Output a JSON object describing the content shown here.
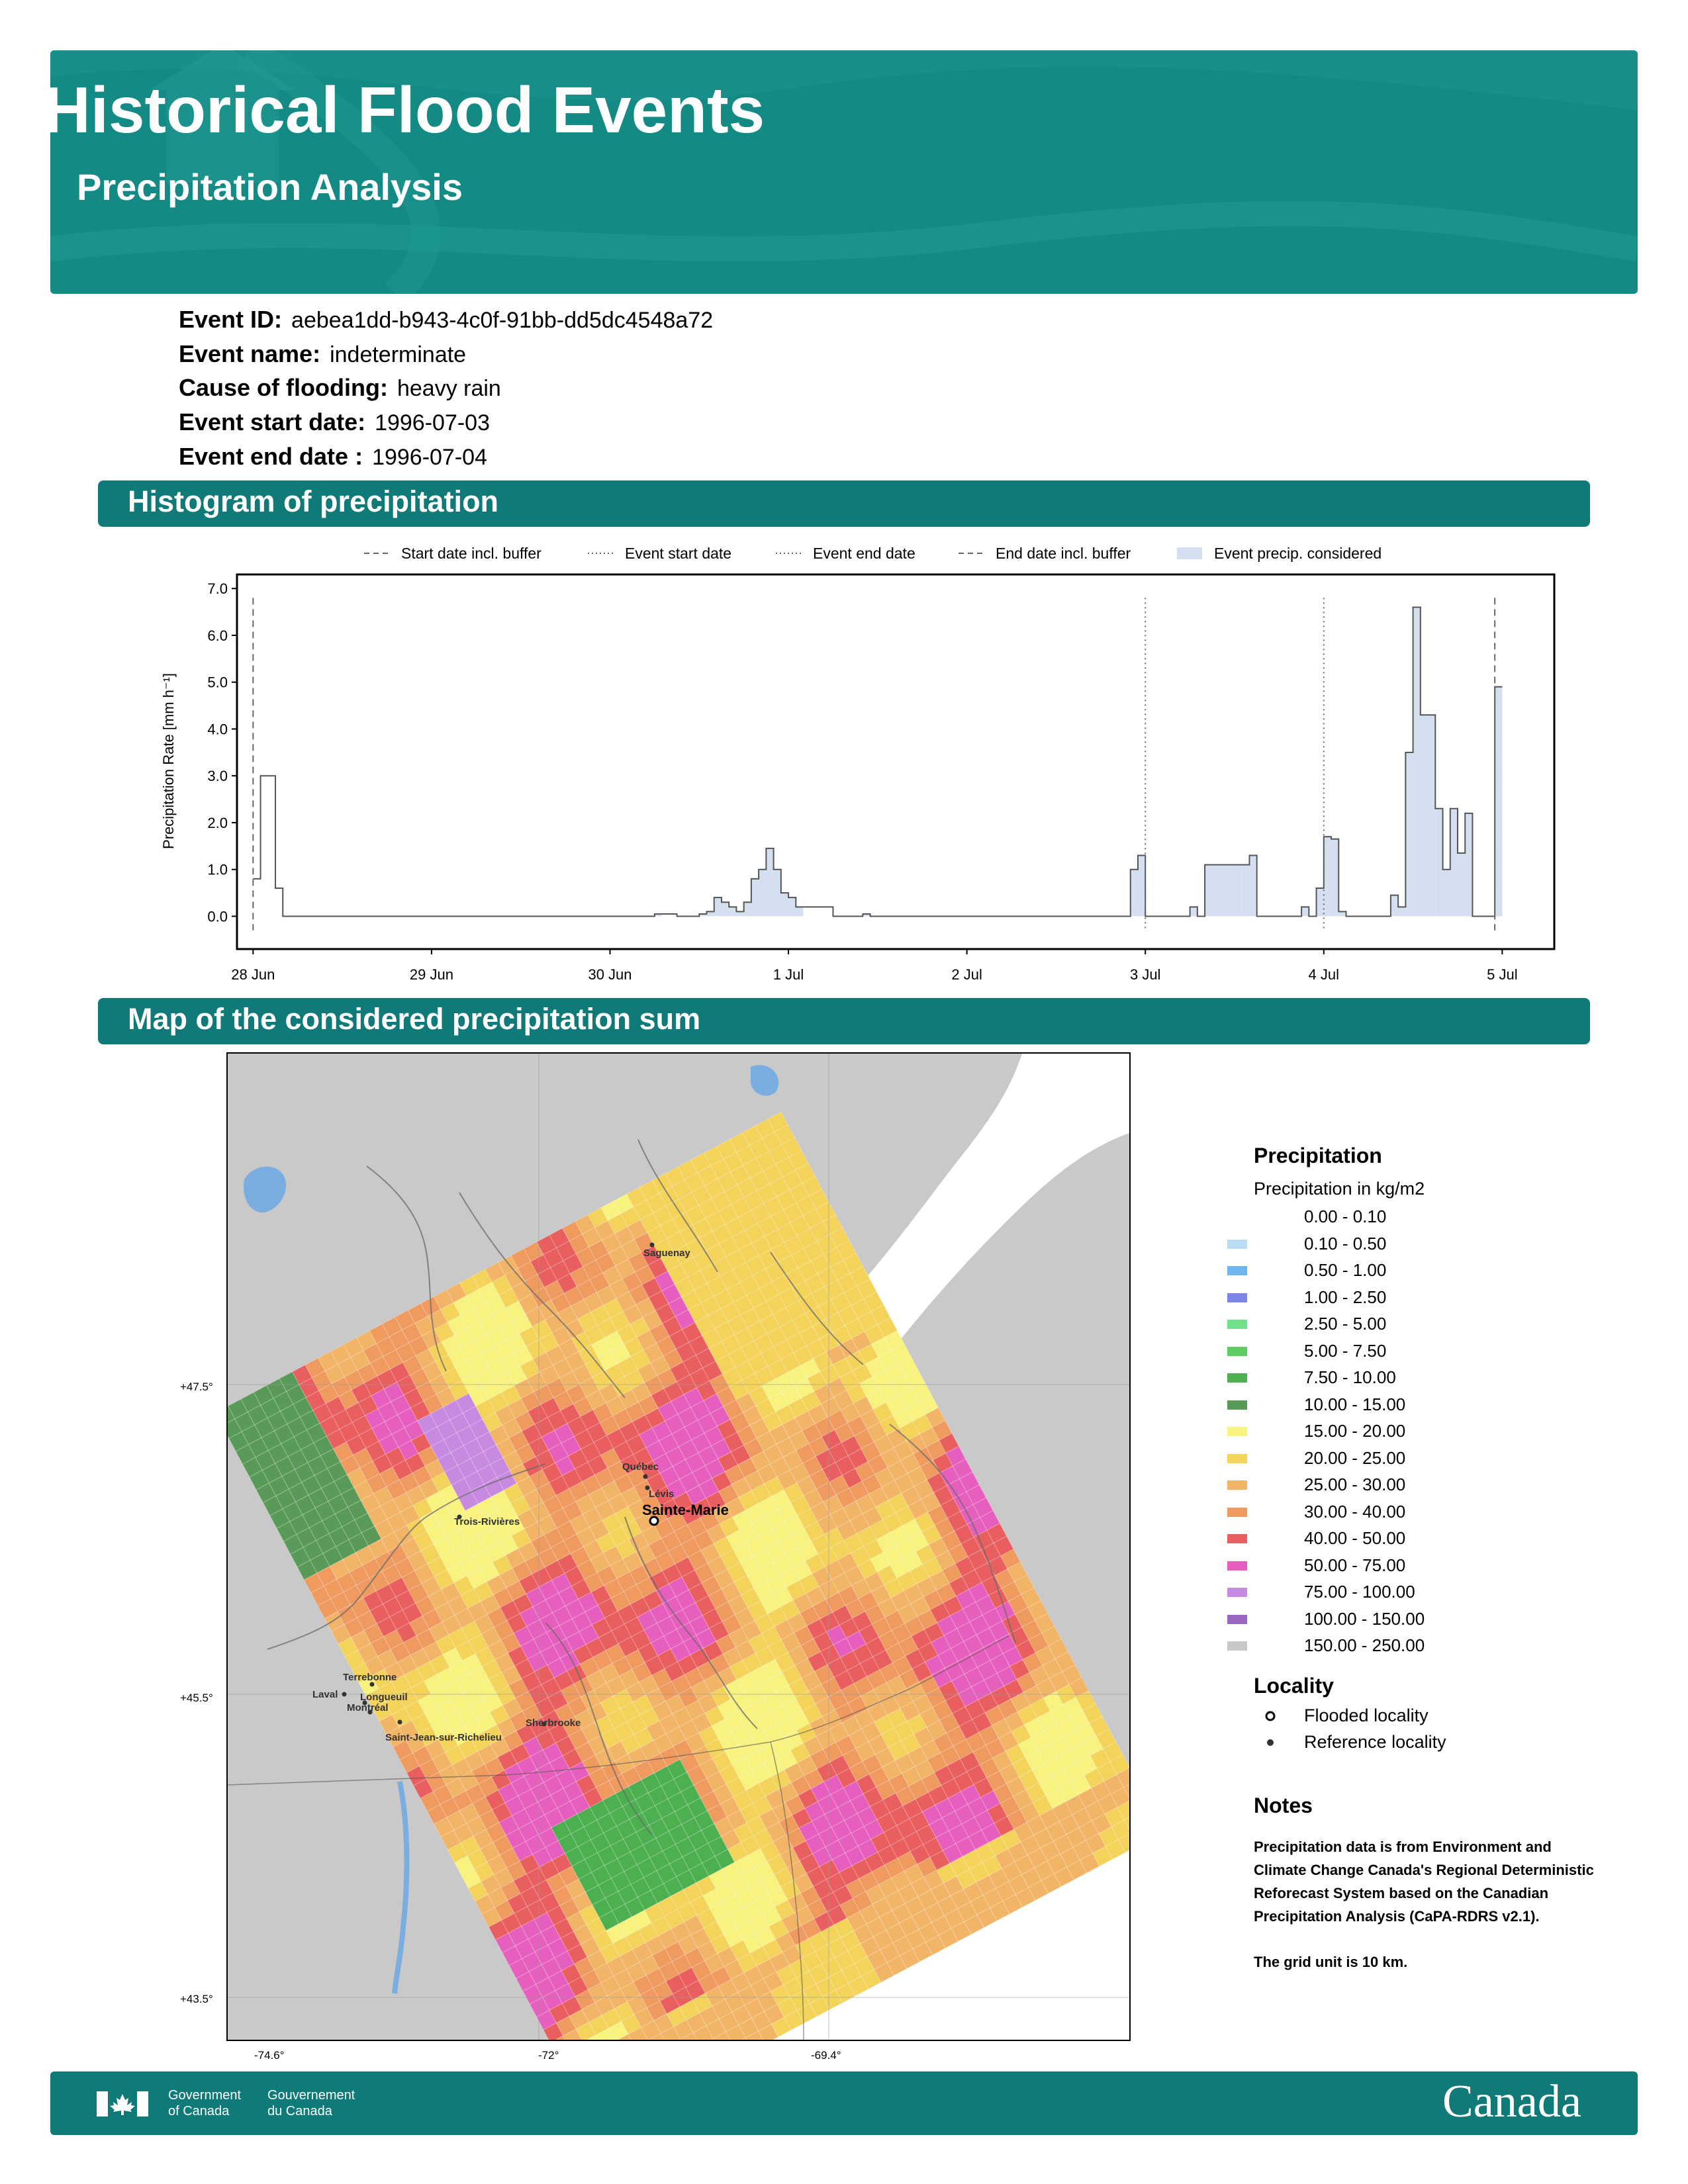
{
  "header": {
    "title": "Historical Flood Events",
    "subtitle": "Precipitation Analysis"
  },
  "event": {
    "id_label": "Event ID:",
    "id_value": "aebea1dd-b943-4c0f-91bb-dd5dc4548a72",
    "name_label": "Event name:",
    "name_value": "indeterminate",
    "cause_label": "Cause of flooding:",
    "cause_value": "heavy rain",
    "start_label": "Event start date:",
    "start_value": "1996-07-03",
    "end_label": "Event end date :",
    "end_value": "1996-07-04"
  },
  "sections": {
    "histogram": "Histogram of precipitation",
    "map": "Map of the considered precipitation sum"
  },
  "chart_data": {
    "type": "area",
    "ylabel": "Precipitation Rate [mm h⁻¹]",
    "ylim": [
      -0.7,
      7.3
    ],
    "yticks": [
      "0.0",
      "1.0",
      "2.0",
      "3.0",
      "4.0",
      "5.0",
      "6.0",
      "7.0"
    ],
    "xlim": [
      "1996-06-27 21:50",
      "1996-07-05 07:00"
    ],
    "xticks": [
      "28 Jun",
      "29 Jun",
      "30 Jun",
      "1 Jul",
      "2 Jul",
      "3 Jul",
      "4 Jul",
      "5 Jul"
    ],
    "legend_position": "top",
    "legend": [
      {
        "label": "Start date incl. buffer",
        "style": "dashed"
      },
      {
        "label": "Event start date",
        "style": "dotted"
      },
      {
        "label": "Event end date",
        "style": "dotted"
      },
      {
        "label": "End date incl. buffer",
        "style": "dashed"
      },
      {
        "label": "Event precip. considered",
        "style": "fill"
      }
    ],
    "reference_lines": {
      "start_incl_buffer": "1996-06-28 00:00",
      "event_start": "1996-07-03 00:00",
      "event_end": "1996-07-04 00:00",
      "end_incl_buffer": "1996-07-04 23:00"
    },
    "considered_range": [
      "1996-06-28 23:00",
      "1996-07-04 23:00"
    ],
    "series": [
      {
        "x": [
          "1996-06-28 00:00",
          "1996-06-28 01:00",
          "1996-06-28 02:00",
          "1996-06-28 03:00",
          "1996-06-28 04:00",
          "1996-06-28 05:00",
          "1996-06-29 12:00",
          "1996-06-30 00:00",
          "1996-06-30 06:00",
          "1996-06-30 09:00",
          "1996-06-30 12:00",
          "1996-06-30 13:00",
          "1996-06-30 14:00",
          "1996-06-30 15:00",
          "1996-06-30 16:00",
          "1996-06-30 17:00",
          "1996-06-30 18:00",
          "1996-06-30 19:00",
          "1996-06-30 20:00",
          "1996-06-30 21:00",
          "1996-06-30 22:00",
          "1996-06-30 23:00",
          "1996-07-01 00:00",
          "1996-07-01 01:00",
          "1996-07-01 06:00",
          "1996-07-01 10:00",
          "1996-07-01 11:00",
          "1996-07-01 15:00",
          "1996-07-02 00:00",
          "1996-07-02 12:00",
          "1996-07-02 22:00",
          "1996-07-02 23:00",
          "1996-07-03 00:00",
          "1996-07-03 01:00",
          "1996-07-03 02:00",
          "1996-07-03 03:00",
          "1996-07-03 04:00",
          "1996-07-03 05:00",
          "1996-07-03 06:00",
          "1996-07-03 07:00",
          "1996-07-03 08:00",
          "1996-07-03 09:00",
          "1996-07-03 10:00",
          "1996-07-03 11:00",
          "1996-07-03 12:00",
          "1996-07-03 13:00",
          "1996-07-03 14:00",
          "1996-07-03 15:00",
          "1996-07-03 16:00",
          "1996-07-03 17:00",
          "1996-07-03 18:00",
          "1996-07-03 19:00",
          "1996-07-03 20:00",
          "1996-07-03 21:00",
          "1996-07-03 22:00",
          "1996-07-03 23:00",
          "1996-07-04 00:00",
          "1996-07-04 01:00",
          "1996-07-04 02:00",
          "1996-07-04 03:00",
          "1996-07-04 04:00",
          "1996-07-04 05:00",
          "1996-07-04 06:00",
          "1996-07-04 07:00",
          "1996-07-04 08:00",
          "1996-07-04 09:00",
          "1996-07-04 10:00",
          "1996-07-04 11:00",
          "1996-07-04 12:00",
          "1996-07-04 13:00",
          "1996-07-04 14:00",
          "1996-07-04 15:00",
          "1996-07-04 16:00",
          "1996-07-04 17:00",
          "1996-07-04 18:00",
          "1996-07-04 19:00",
          "1996-07-04 20:00",
          "1996-07-04 21:00",
          "1996-07-04 22:00",
          "1996-07-04 23:00"
        ],
        "values": [
          0.8,
          3.0,
          3.0,
          0.6,
          0.0,
          0.0,
          0.0,
          0.0,
          0.05,
          0.0,
          0.05,
          0.1,
          0.4,
          0.3,
          0.2,
          0.1,
          0.3,
          0.8,
          1.0,
          1.45,
          1.0,
          0.5,
          0.4,
          0.2,
          0.0,
          0.05,
          0.0,
          0.0,
          0.0,
          0.0,
          1.0,
          1.3,
          0.0,
          0.0,
          0.0,
          0.0,
          0.0,
          0.0,
          0.2,
          0.0,
          1.1,
          1.1,
          1.1,
          1.1,
          1.1,
          1.1,
          1.3,
          0.0,
          0.0,
          0.0,
          0.0,
          0.0,
          0.0,
          0.2,
          0.0,
          0.6,
          1.7,
          1.65,
          0.1,
          0.0,
          0.0,
          0.0,
          0.0,
          0.0,
          0.0,
          0.45,
          0.2,
          3.5,
          6.6,
          4.3,
          4.3,
          2.3,
          1.0,
          2.3,
          1.35,
          2.2,
          0.0,
          0.0,
          0.0,
          4.9
        ]
      }
    ]
  },
  "map": {
    "lat_labels": [
      "+47.5°",
      "+45.5°",
      "+43.5°"
    ],
    "lon_labels": [
      "-74.6°",
      "-72°",
      "-69.4°"
    ],
    "localities": [
      {
        "name": "Saguenay",
        "type": "reference"
      },
      {
        "name": "Québec",
        "type": "reference"
      },
      {
        "name": "Lévis",
        "type": "reference"
      },
      {
        "name": "Sainte-Marie",
        "type": "flooded"
      },
      {
        "name": "Trois-Rivières",
        "type": "reference"
      },
      {
        "name": "Terrebonne",
        "type": "reference"
      },
      {
        "name": "Laval",
        "type": "reference"
      },
      {
        "name": "Longueuil",
        "type": "reference"
      },
      {
        "name": "Montréal",
        "type": "reference"
      },
      {
        "name": "Sherbrooke",
        "type": "reference"
      },
      {
        "name": "Saint-Jean-sur-Richelieu",
        "type": "reference"
      }
    ]
  },
  "legend": {
    "precip_title": "Precipitation",
    "precip_subtitle": "Precipitation in kg/m2",
    "bins": [
      {
        "label": "0.00 - 0.10",
        "color": "#ffffff"
      },
      {
        "label": "0.10 - 0.50",
        "color": "#b9dcf5"
      },
      {
        "label": "0.50 - 1.00",
        "color": "#6cb5ee"
      },
      {
        "label": "1.00 - 2.50",
        "color": "#7c84e6"
      },
      {
        "label": "2.50 - 5.00",
        "color": "#72e089"
      },
      {
        "label": "5.00 - 7.50",
        "color": "#5fcb63"
      },
      {
        "label": "7.50 - 10.00",
        "color": "#4caf50"
      },
      {
        "label": "10.00 - 15.00",
        "color": "#5a9a58"
      },
      {
        "label": "15.00 - 20.00",
        "color": "#f7f37e"
      },
      {
        "label": "20.00 - 25.00",
        "color": "#f3d35a"
      },
      {
        "label": "25.00 - 30.00",
        "color": "#f2b466"
      },
      {
        "label": "30.00 - 40.00",
        "color": "#ef9a5e"
      },
      {
        "label": "40.00 - 50.00",
        "color": "#e95e5e"
      },
      {
        "label": "50.00 - 75.00",
        "color": "#e75fbe"
      },
      {
        "label": "75.00 - 100.00",
        "color": "#c88ae0"
      },
      {
        "label": "100.00 - 150.00",
        "color": "#9a67c0"
      },
      {
        "label": "150.00 - 250.00",
        "color": "#c7c7c7"
      }
    ],
    "locality_title": "Locality",
    "flooded_label": "Flooded locality",
    "reference_label": "Reference locality",
    "notes_title": "Notes",
    "notes_text": "Precipitation data is from Environment and Climate Change Canada's Regional Deterministic Reforecast System based on the Canadian Precipitation Analysis (CaPA-RDRS v2.1).",
    "notes_grid": "The grid unit is 10 km."
  },
  "footer": {
    "gov_en_line1": "Government",
    "gov_en_line2": "of Canada",
    "gov_fr_line1": "Gouvernement",
    "gov_fr_line2": "du Canada",
    "wordmark": "Canada"
  }
}
